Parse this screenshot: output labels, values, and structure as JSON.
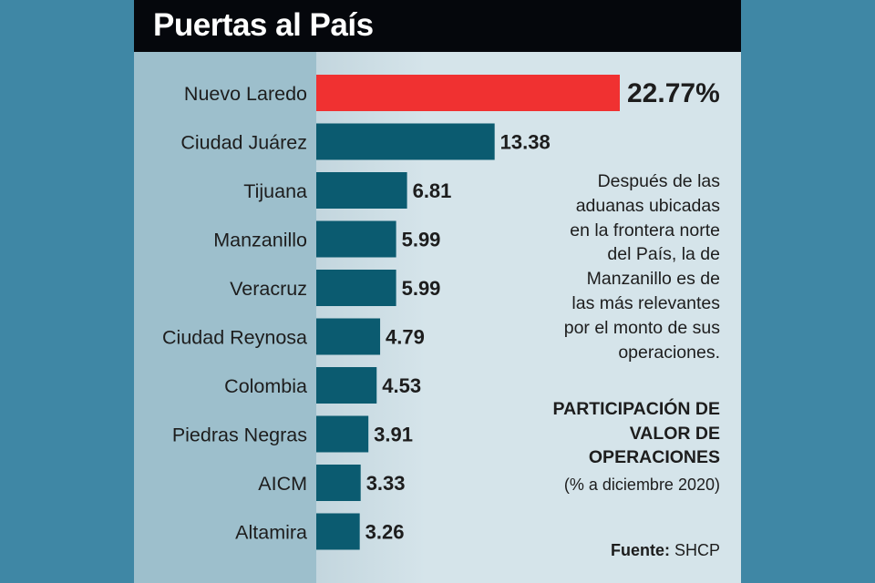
{
  "chart_data": {
    "type": "bar",
    "orientation": "horizontal",
    "title": "Puertas al País",
    "subtitle": "PARTICIPACIÓN DE VALOR DE OPERACIONES",
    "period": "(% a diciembre 2020)",
    "categories": [
      "Nuevo Laredo",
      "Ciudad Juárez",
      "Tijuana",
      "Manzanillo",
      "Veracruz",
      "Ciudad Reynosa",
      "Colombia",
      "Piedras Negras",
      "AICM",
      "Altamira"
    ],
    "values": [
      22.77,
      13.38,
      6.81,
      5.99,
      5.99,
      4.79,
      4.53,
      3.91,
      3.33,
      3.26
    ],
    "value_labels": [
      "22.77%",
      "13.38",
      "6.81",
      "5.99",
      "5.99",
      "4.79",
      "4.53",
      "3.91",
      "3.33",
      "3.26"
    ],
    "highlight_index": 0,
    "colors": {
      "highlight": "#f03131",
      "bar": "#0b5b70"
    },
    "xlim": [
      0,
      23
    ],
    "grid": false,
    "annotation": [
      "Después de las",
      "aduanas ubicadas",
      "en la frontera norte",
      "del País, la de",
      "Manzanillo es de",
      "las más relevantes",
      "por el monto de sus",
      "operaciones."
    ],
    "source_label": "Fuente:",
    "source": "SHCP"
  }
}
